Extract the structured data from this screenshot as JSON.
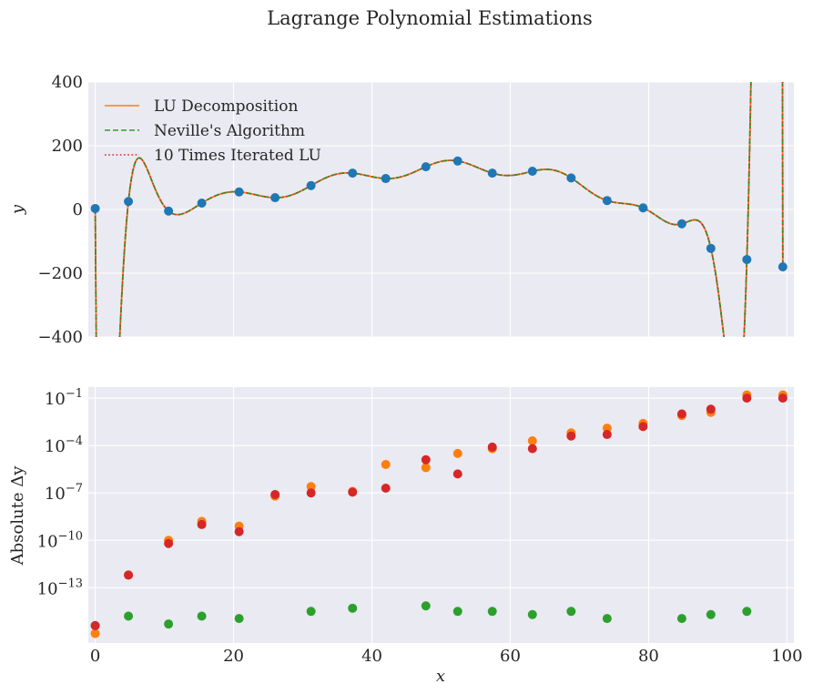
{
  "figure": {
    "title": "Lagrange Polynomial Estimations"
  },
  "chart_data": [
    {
      "type": "line",
      "panel": "top",
      "xlabel": "",
      "ylabel": "y",
      "xlim": [
        -1,
        101
      ],
      "ylim": [
        -400,
        400
      ],
      "yticks": [
        400,
        200,
        0,
        -200,
        -400
      ],
      "ytick_labels": [
        "400",
        "200",
        "0",
        "−200",
        "−400"
      ],
      "xticks": [
        0,
        20,
        40,
        60,
        80,
        100
      ],
      "grid": true,
      "legend_position": "top-left",
      "legend": [
        {
          "label": "LU Decomposition",
          "color": "#ff7f0e",
          "style": "solid"
        },
        {
          "label": "Neville's Algorithm",
          "color": "#2ca02c",
          "style": "dashed"
        },
        {
          "label": "10 Times Iterated LU",
          "color": "#d62728",
          "style": "dotted"
        }
      ],
      "points_color": "#1f77b4",
      "points": {
        "x": [
          0,
          4.8,
          10.6,
          15.4,
          20.8,
          26,
          31.2,
          37.2,
          42,
          47.8,
          52.4,
          57.4,
          63.2,
          68.8,
          74,
          79.2,
          84.8,
          89,
          94.2,
          99.4
        ],
        "y": [
          3,
          25,
          -5,
          20,
          55,
          37,
          75,
          114,
          97,
          134,
          152,
          114,
          120,
          99,
          28,
          5,
          -45,
          -122,
          -157,
          -180
        ]
      }
    },
    {
      "type": "scatter",
      "panel": "bottom",
      "xlabel": "x",
      "ylabel": "Absolute Δy",
      "xlim": [
        -1,
        101
      ],
      "yscale": "log",
      "ylim_exp": [
        -16.5,
        -0.3
      ],
      "ytick_exponents": [
        -1,
        -4,
        -7,
        -10,
        -13
      ],
      "ytick_labels": [
        "−1",
        "−4",
        "−7",
        "−10",
        "−13"
      ],
      "xticks": [
        0,
        20,
        40,
        60,
        80,
        100
      ],
      "xtick_labels": [
        "0",
        "20",
        "40",
        "60",
        "80",
        "100"
      ],
      "grid": true,
      "series": [
        {
          "color": "#ff7f0e",
          "x": [
            0,
            4.8,
            10.6,
            15.4,
            20.8,
            26,
            31.2,
            37.2,
            42,
            47.8,
            52.4,
            57.4,
            63.2,
            68.8,
            74,
            79.2,
            84.8,
            89,
            94.2,
            99.4
          ],
          "log10_y": [
            -15.9,
            -12.2,
            -10.0,
            -8.8,
            -9.1,
            -7.2,
            -6.6,
            -6.9,
            -5.2,
            -5.4,
            -4.5,
            -4.2,
            -3.7,
            -3.2,
            -2.9,
            -2.6,
            -2.1,
            -1.9,
            -0.8,
            -0.8
          ]
        },
        {
          "color": "#2ca02c",
          "x": [
            0,
            4.8,
            10.6,
            15.4,
            20.8,
            31.2,
            37.2,
            47.8,
            52.4,
            57.4,
            63.2,
            68.8,
            74,
            84.8,
            89,
            94.2
          ],
          "log10_y": [
            -15.4,
            -14.8,
            -15.3,
            -14.8,
            -14.95,
            -14.5,
            -14.3,
            -14.15,
            -14.5,
            -14.5,
            -14.7,
            -14.5,
            -14.95,
            -14.95,
            -14.7,
            -14.5
          ]
        },
        {
          "color": "#d62728",
          "x": [
            0,
            4.8,
            10.6,
            15.4,
            20.8,
            26,
            31.2,
            37.2,
            42,
            47.8,
            52.4,
            57.4,
            63.2,
            68.8,
            74,
            79.2,
            84.8,
            89,
            94.2,
            99.4
          ],
          "log10_y": [
            -15.4,
            -12.2,
            -10.2,
            -9.0,
            -9.45,
            -7.1,
            -7.0,
            -6.95,
            -6.7,
            -4.9,
            -5.8,
            -4.1,
            -4.2,
            -3.4,
            -3.3,
            -2.8,
            -2.0,
            -1.7,
            -1.0,
            -1.0
          ]
        }
      ]
    }
  ]
}
